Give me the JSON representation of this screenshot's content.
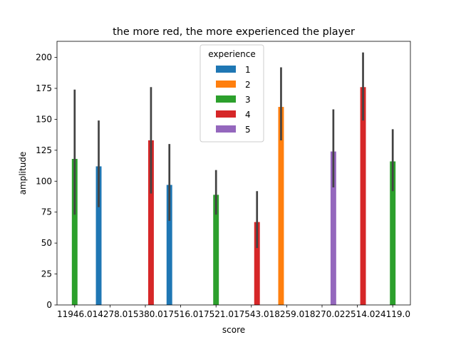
{
  "chart_data": {
    "type": "bar",
    "title": "the more red, the more experienced the player",
    "xlabel": "score",
    "ylabel": "amplitude",
    "ylim": [
      0,
      213
    ],
    "yticks": [
      0,
      25,
      50,
      75,
      100,
      125,
      150,
      175,
      200
    ],
    "categories": [
      "11946.0",
      "14278.0",
      "15380.0",
      "17516.0",
      "17521.0",
      "17543.0",
      "18259.0",
      "18270.0",
      "22514.0",
      "24119.0"
    ],
    "legend": {
      "title": "experience",
      "placement": "top-center",
      "entries": [
        {
          "label": "1",
          "color": "#1f77b4"
        },
        {
          "label": "2",
          "color": "#ff7f0e"
        },
        {
          "label": "3",
          "color": "#2ca02c"
        },
        {
          "label": "4",
          "color": "#d62728"
        },
        {
          "label": "5",
          "color": "#9467bd"
        }
      ]
    },
    "bars": [
      {
        "category": "11946.0",
        "experience": "3",
        "value": 118,
        "ci": [
          73,
          174
        ]
      },
      {
        "category": "14278.0",
        "experience": "1",
        "value": 112,
        "ci": [
          79,
          149
        ]
      },
      {
        "category": "15380.0",
        "experience": "4",
        "value": 133,
        "ci": [
          90,
          176
        ]
      },
      {
        "category": "17516.0",
        "experience": "1",
        "value": 97,
        "ci": [
          68,
          130
        ]
      },
      {
        "category": "17521.0",
        "experience": "3",
        "value": 89,
        "ci": [
          73,
          109
        ]
      },
      {
        "category": "17543.0",
        "experience": "4",
        "value": 67,
        "ci": [
          46,
          92
        ]
      },
      {
        "category": "18259.0",
        "experience": "2",
        "value": 160,
        "ci": [
          133,
          192
        ]
      },
      {
        "category": "18270.0",
        "experience": "5",
        "value": 124,
        "ci": [
          95,
          158
        ]
      },
      {
        "category": "22514.0",
        "experience": "4",
        "value": 176,
        "ci": [
          149,
          204
        ]
      },
      {
        "category": "24119.0",
        "experience": "3",
        "value": 116,
        "ci": [
          92,
          142
        ]
      }
    ]
  }
}
